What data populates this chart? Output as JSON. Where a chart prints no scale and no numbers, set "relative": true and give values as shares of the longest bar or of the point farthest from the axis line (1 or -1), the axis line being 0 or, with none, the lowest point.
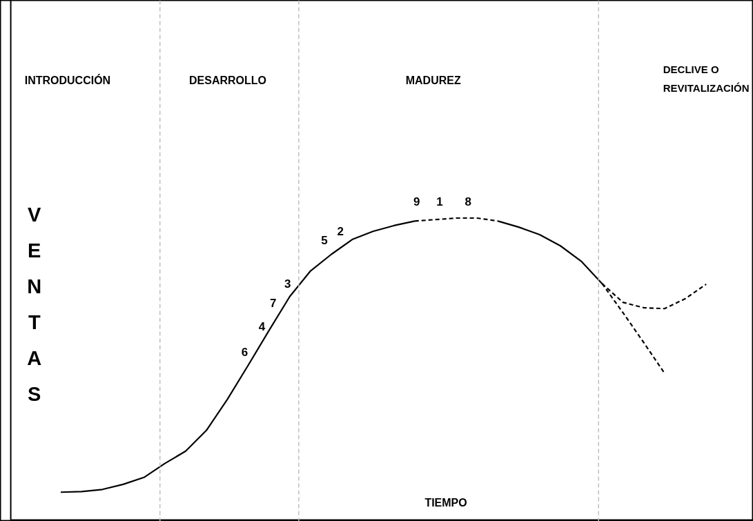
{
  "chart_data": {
    "type": "line",
    "relative": true,
    "xlabel": "TIEMPO",
    "ylabel": "VENTAS",
    "grid": false,
    "marker": "none",
    "tick_labels": false,
    "categories": [
      null,
      null,
      null,
      null,
      null,
      null,
      null,
      null,
      null,
      null,
      null,
      null,
      null,
      null,
      null,
      null,
      null,
      null,
      null,
      null,
      null,
      null,
      null,
      null,
      null,
      null,
      null,
      null,
      null,
      null,
      null,
      null
    ],
    "series": [
      {
        "color": "#000000",
        "line_style": "solid",
        "values": [
          0.092,
          0.094,
          0.101,
          0.118,
          0.141,
          0.187,
          0.228,
          0.297,
          0.399,
          0.512,
          0.627,
          0.74,
          0.825,
          0.88,
          0.929,
          0.956,
          0.975,
          0.99,
          null,
          null,
          null,
          null,
          null,
          null,
          null,
          null,
          null,
          null,
          null,
          null,
          null,
          null
        ]
      },
      {
        "color": "#000000",
        "line_style": "dashed",
        "values": [
          null,
          null,
          null,
          null,
          null,
          null,
          null,
          null,
          null,
          null,
          null,
          null,
          null,
          null,
          null,
          null,
          null,
          0.99,
          0.995,
          1.0,
          1.0,
          0.99,
          null,
          null,
          null,
          null,
          null,
          null,
          null,
          null,
          null,
          null
        ]
      },
      {
        "color": "#000000",
        "line_style": "solid",
        "values": [
          null,
          null,
          null,
          null,
          null,
          null,
          null,
          null,
          null,
          null,
          null,
          null,
          null,
          null,
          null,
          null,
          null,
          null,
          null,
          null,
          null,
          0.99,
          0.97,
          0.945,
          0.908,
          0.857,
          0.783,
          null,
          null,
          null,
          null,
          null
        ]
      },
      {
        "color": "#000000",
        "line_style": "dashed",
        "values": [
          null,
          null,
          null,
          null,
          null,
          null,
          null,
          null,
          null,
          null,
          null,
          null,
          null,
          null,
          null,
          null,
          null,
          null,
          null,
          null,
          null,
          null,
          null,
          null,
          null,
          null,
          0.783,
          0.721,
          0.703,
          0.7,
          0.733,
          0.781
        ]
      },
      {
        "color": "#000000",
        "line_style": "dashed",
        "values": [
          null,
          null,
          null,
          null,
          null,
          null,
          null,
          null,
          null,
          null,
          null,
          null,
          null,
          null,
          null,
          null,
          null,
          null,
          null,
          null,
          null,
          null,
          null,
          null,
          null,
          null,
          0.783,
          0.687,
          0.588,
          0.486,
          null,
          null
        ]
      }
    ],
    "annotations": [
      "INTRODUCCIÓN",
      "DESARROLLO",
      "MADUREZ",
      "DECLIVE O\nREVITALIZACIÓN",
      "9",
      "1",
      "8",
      "5",
      "2",
      "3",
      "7",
      "4",
      "6"
    ]
  }
}
